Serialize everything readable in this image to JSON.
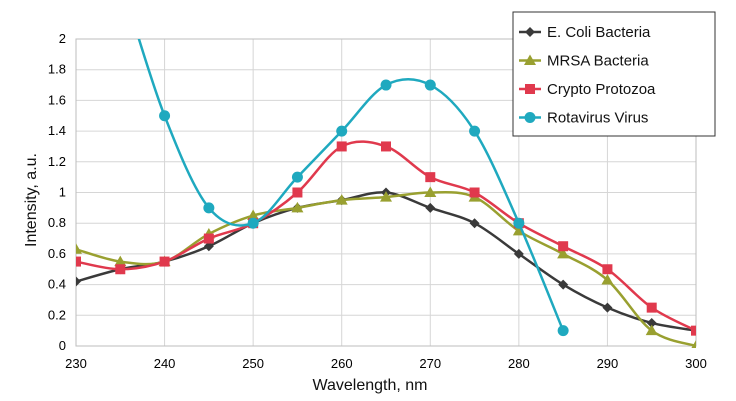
{
  "chart_data": {
    "type": "line",
    "title": "",
    "xlabel": "Wavelength, nm",
    "ylabel": "Intensity, a.u.",
    "xlim": [
      230,
      300
    ],
    "ylim": [
      0,
      2
    ],
    "xticks": [
      230,
      240,
      250,
      260,
      270,
      280,
      290,
      300
    ],
    "yticks": [
      0,
      0.2,
      0.4,
      0.6,
      0.8,
      1,
      1.2,
      1.4,
      1.6,
      1.8,
      2
    ],
    "grid": true,
    "legend_position": "top-right",
    "series": [
      {
        "name": "E. Coli Bacteria",
        "color": "#3a3a3a",
        "marker": "diamond",
        "points": [
          [
            230,
            0.42
          ],
          [
            235,
            0.5
          ],
          [
            240,
            0.55
          ],
          [
            245,
            0.65
          ],
          [
            250,
            0.8
          ],
          [
            255,
            0.9
          ],
          [
            260,
            0.95
          ],
          [
            265,
            1.0
          ],
          [
            270,
            0.9
          ],
          [
            275,
            0.8
          ],
          [
            280,
            0.6
          ],
          [
            285,
            0.4
          ],
          [
            290,
            0.25
          ],
          [
            295,
            0.15
          ],
          [
            300,
            0.1
          ]
        ]
      },
      {
        "name": "MRSA Bacteria",
        "color": "#99a030",
        "marker": "triangle",
        "points": [
          [
            230,
            0.63
          ],
          [
            235,
            0.55
          ],
          [
            240,
            0.55
          ],
          [
            245,
            0.73
          ],
          [
            250,
            0.85
          ],
          [
            255,
            0.9
          ],
          [
            260,
            0.95
          ],
          [
            265,
            0.97
          ],
          [
            270,
            1.0
          ],
          [
            275,
            0.97
          ],
          [
            280,
            0.75
          ],
          [
            285,
            0.6
          ],
          [
            290,
            0.43
          ],
          [
            295,
            0.1
          ],
          [
            300,
            0.0
          ]
        ]
      },
      {
        "name": "Crypto Protozoa",
        "color": "#e0394d",
        "marker": "square",
        "points": [
          [
            230,
            0.55
          ],
          [
            235,
            0.5
          ],
          [
            240,
            0.55
          ],
          [
            245,
            0.7
          ],
          [
            250,
            0.8
          ],
          [
            255,
            1.0
          ],
          [
            260,
            1.3
          ],
          [
            265,
            1.3
          ],
          [
            270,
            1.1
          ],
          [
            275,
            1.0
          ],
          [
            280,
            0.8
          ],
          [
            285,
            0.65
          ],
          [
            290,
            0.5
          ],
          [
            295,
            0.25
          ],
          [
            300,
            0.1
          ]
        ]
      },
      {
        "name": "Rotavirus Virus",
        "color": "#1fa9bf",
        "marker": "circle",
        "line_start": [
          235.5,
          2.3
        ],
        "points": [
          [
            240,
            1.5
          ],
          [
            245,
            0.9
          ],
          [
            250,
            0.8
          ],
          [
            255,
            1.1
          ],
          [
            260,
            1.4
          ],
          [
            265,
            1.7
          ],
          [
            270,
            1.7
          ],
          [
            275,
            1.4
          ],
          [
            280,
            0.8
          ],
          [
            285,
            0.1
          ]
        ]
      }
    ]
  }
}
